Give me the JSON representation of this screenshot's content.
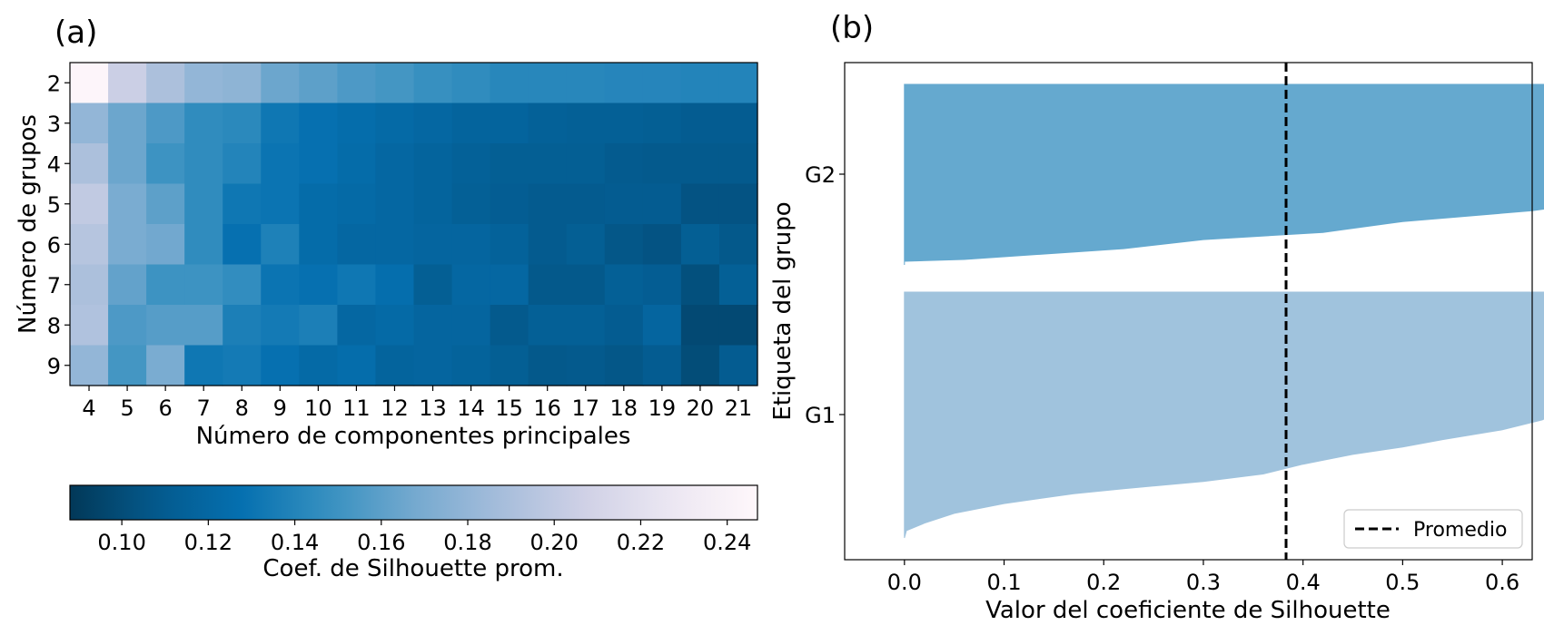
{
  "panels": {
    "a": {
      "label": "(a)"
    },
    "b": {
      "label": "(b)"
    }
  },
  "chart_data": [
    {
      "type": "heatmap",
      "xlabel": "Número de componentes principales",
      "ylabel": "Número de grupos",
      "x_categories": [
        "4",
        "5",
        "6",
        "7",
        "8",
        "9",
        "10",
        "11",
        "12",
        "13",
        "14",
        "15",
        "16",
        "17",
        "18",
        "19",
        "20",
        "21"
      ],
      "y_categories": [
        "2",
        "3",
        "4",
        "5",
        "6",
        "7",
        "8",
        "9"
      ],
      "values": [
        [
          0.245,
          0.205,
          0.19,
          0.18,
          0.178,
          0.165,
          0.16,
          0.155,
          0.152,
          0.148,
          0.145,
          0.142,
          0.142,
          0.142,
          0.141,
          0.141,
          0.14,
          0.14
        ],
        [
          0.18,
          0.165,
          0.155,
          0.145,
          0.143,
          0.132,
          0.128,
          0.125,
          0.122,
          0.12,
          0.117,
          0.117,
          0.114,
          0.113,
          0.113,
          0.112,
          0.11,
          0.11
        ],
        [
          0.19,
          0.165,
          0.15,
          0.145,
          0.14,
          0.13,
          0.128,
          0.124,
          0.12,
          0.117,
          0.114,
          0.112,
          0.112,
          0.112,
          0.109,
          0.108,
          0.108,
          0.108
        ],
        [
          0.2,
          0.17,
          0.16,
          0.145,
          0.132,
          0.13,
          0.124,
          0.122,
          0.12,
          0.117,
          0.113,
          0.111,
          0.109,
          0.109,
          0.11,
          0.11,
          0.104,
          0.104
        ],
        [
          0.195,
          0.17,
          0.167,
          0.145,
          0.128,
          0.138,
          0.124,
          0.12,
          0.12,
          0.118,
          0.118,
          0.115,
          0.109,
          0.112,
          0.106,
          0.104,
          0.112,
          0.107
        ],
        [
          0.19,
          0.162,
          0.15,
          0.15,
          0.146,
          0.13,
          0.128,
          0.132,
          0.126,
          0.112,
          0.12,
          0.12,
          0.107,
          0.107,
          0.113,
          0.111,
          0.102,
          0.113
        ],
        [
          0.192,
          0.155,
          0.158,
          0.158,
          0.137,
          0.134,
          0.137,
          0.12,
          0.122,
          0.118,
          0.118,
          0.108,
          0.113,
          0.113,
          0.11,
          0.118,
          0.098,
          0.098
        ],
        [
          0.18,
          0.152,
          0.17,
          0.132,
          0.134,
          0.128,
          0.122,
          0.125,
          0.117,
          0.118,
          0.116,
          0.112,
          0.107,
          0.108,
          0.106,
          0.11,
          0.1,
          0.11
        ]
      ],
      "colormap": "PuBu_r",
      "colorbar": {
        "label": "Coef. de Silhouette prom.",
        "range": [
          0.088,
          0.247
        ],
        "ticks": [
          "0.10",
          "0.12",
          "0.14",
          "0.16",
          "0.18",
          "0.20",
          "0.22",
          "0.24"
        ],
        "tick_values": [
          0.1,
          0.12,
          0.14,
          0.16,
          0.18,
          0.2,
          0.22,
          0.24
        ]
      }
    },
    {
      "type": "area",
      "xlabel": "Valor del coeficiente de Silhouette",
      "ylabel": "Etiqueta del grupo",
      "xlim": [
        -0.06,
        0.63
      ],
      "x_ticks": [
        "0.0",
        "0.1",
        "0.2",
        "0.3",
        "0.4",
        "0.5",
        "0.6"
      ],
      "x_tick_values": [
        0.0,
        0.1,
        0.2,
        0.3,
        0.4,
        0.5,
        0.6
      ],
      "clusters": [
        {
          "label": "G1",
          "color": "#a0c3dd",
          "profile": [
            [
              0,
              0
            ],
            [
              0.03,
              0.002
            ],
            [
              0.06,
              0.02
            ],
            [
              0.1,
              0.05
            ],
            [
              0.14,
              0.1
            ],
            [
              0.18,
              0.17
            ],
            [
              0.2,
              0.22
            ],
            [
              0.23,
              0.3
            ],
            [
              0.26,
              0.36
            ],
            [
              0.3,
              0.4
            ],
            [
              0.34,
              0.45
            ],
            [
              0.37,
              0.5
            ],
            [
              0.4,
              0.54
            ],
            [
              0.44,
              0.6
            ],
            [
              0.48,
              0.64
            ],
            [
              0.52,
              0.66
            ],
            [
              0.55,
              0.7
            ],
            [
              0.6,
              0.76
            ],
            [
              0.64,
              0.86
            ],
            [
              0.7,
              0.9
            ],
            [
              0.76,
              0.93
            ],
            [
              0.84,
              0.95
            ],
            [
              0.9,
              0.98
            ],
            [
              0.95,
              1.0
            ],
            [
              1.0,
              1.0
            ]
          ]
        },
        {
          "label": "G2",
          "color": "#65a9cf",
          "profile": [
            [
              0,
              0.0
            ],
            [
              0.02,
              0.0
            ],
            [
              0.03,
              0.06
            ],
            [
              0.09,
              0.22
            ],
            [
              0.14,
              0.3
            ],
            [
              0.18,
              0.42
            ],
            [
              0.24,
              0.5
            ],
            [
              0.3,
              0.63
            ],
            [
              0.36,
              0.71
            ],
            [
              0.42,
              0.83
            ],
            [
              0.5,
              0.88
            ],
            [
              0.55,
              0.92
            ],
            [
              0.6,
              0.96
            ],
            [
              0.65,
              1.02
            ],
            [
              0.72,
              1.12
            ],
            [
              0.8,
              1.17
            ],
            [
              0.88,
              1.23
            ],
            [
              0.94,
              1.28
            ],
            [
              0.98,
              1.32
            ],
            [
              1.0,
              1.32
            ]
          ]
        }
      ],
      "average_line": {
        "value": 0.383,
        "label": "Promedio",
        "legend_position": "lower right"
      }
    }
  ]
}
